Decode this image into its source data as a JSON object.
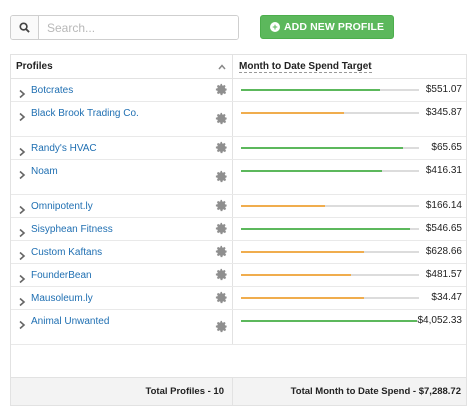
{
  "search": {
    "placeholder": "Search..."
  },
  "toolbar": {
    "add_label": "ADD NEW PROFILE"
  },
  "table": {
    "col_profiles": "Profiles",
    "col_spend": "Month to Date Spend Target",
    "rows": [
      {
        "name": "Botcrates",
        "amount": "$551.07",
        "progress": 0.78,
        "status": "green"
      },
      {
        "name": "Black Brook Trading Co.",
        "amount": "$345.87",
        "progress": 0.58,
        "status": "yellow"
      },
      {
        "name": "Randy's HVAC",
        "amount": "$65.65",
        "progress": 0.91,
        "status": "green"
      },
      {
        "name": "Noam",
        "amount": "$416.31",
        "progress": 0.79,
        "status": "green"
      },
      {
        "name": "Omnipotent.ly",
        "amount": "$166.14",
        "progress": 0.47,
        "status": "yellow"
      },
      {
        "name": "Sisyphean Fitness",
        "amount": "$546.65",
        "progress": 0.95,
        "status": "green"
      },
      {
        "name": "Custom Kaftans",
        "amount": "$628.66",
        "progress": 0.69,
        "status": "yellow"
      },
      {
        "name": "FounderBean",
        "amount": "$481.57",
        "progress": 0.62,
        "status": "yellow"
      },
      {
        "name": "Mausoleum.ly",
        "amount": "$34.47",
        "progress": 0.69,
        "status": "yellow"
      },
      {
        "name": "Animal Unwanted",
        "amount": "$4,052.33",
        "progress": 0.99,
        "status": "green"
      }
    ],
    "footer_profiles": "Total Profiles - 10",
    "footer_spend": "Total Month to Date Spend - $7,288.72"
  },
  "colors": {
    "green": "#5cb85c",
    "yellow": "#f0ad4e",
    "link": "#1f6fb2"
  },
  "icons": {
    "search": "search-icon",
    "add": "plus-circle-icon",
    "row_expand": "chevron-right-icon",
    "settings": "gear-icon",
    "sort": "chevron-up-icon"
  }
}
